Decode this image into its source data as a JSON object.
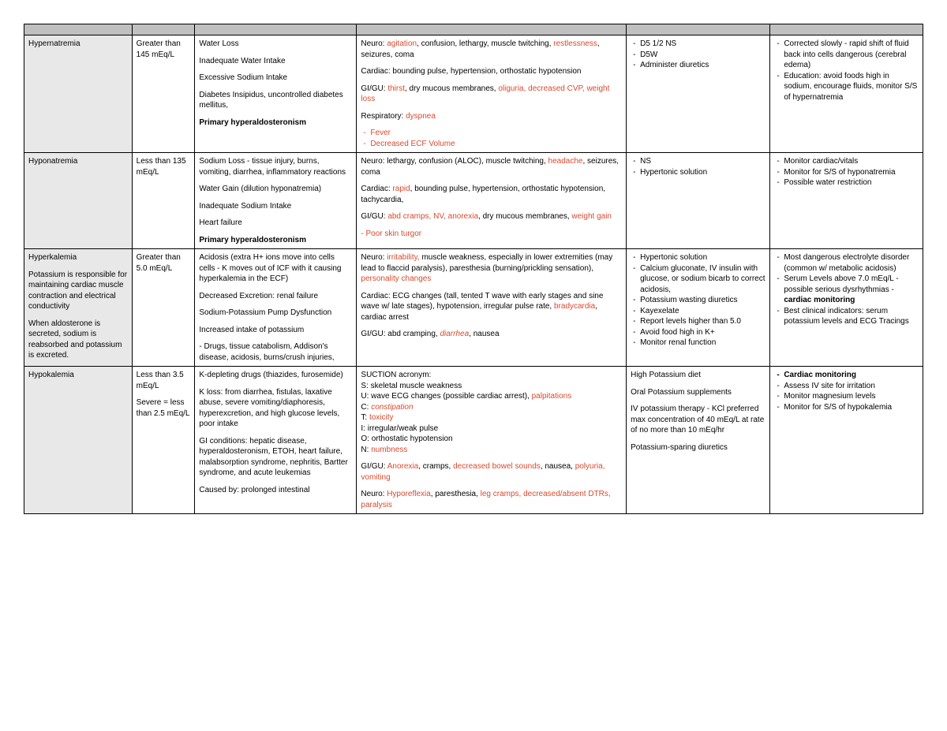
{
  "colors": {
    "header_bg": "#c0c0c0",
    "condition_bg": "#e8e8e8",
    "red_text": "#d94a2e",
    "border": "#000000",
    "page_bg": "#ffffff",
    "text": "#000000"
  },
  "typography": {
    "family": "Arial, Helvetica, sans-serif",
    "cell_fontsize_pt": 8,
    "line_height": 1.35
  },
  "layout": {
    "col_widths_pct": [
      12,
      7,
      18,
      30,
      16,
      17
    ]
  },
  "rows": [
    {
      "condition": "Hypernatremia",
      "value": "Greater than 145 mEq/L",
      "cause_p1": "Water Loss",
      "cause_p2": "Inadequate Water Intake",
      "cause_p3": "Excessive Sodium Intake",
      "cause_p4": "Diabetes Insipidus, uncontrolled diabetes mellitus,",
      "cause_p5": "Primary hyperaldosteronism",
      "ss_neuro_pre": "Neuro: ",
      "ss_neuro_red1": "agitation",
      "ss_neuro_mid1": ", confusion, lethargy, muscle twitching, ",
      "ss_neuro_red2": "restlessness",
      "ss_neuro_mid2": ", seizures, coma",
      "ss_cardiac": "Cardiac: bounding pulse, hypertension, orthostatic hypotension",
      "ss_gigu_pre": "GI/GU: ",
      "ss_gigu_red1": "thirst",
      "ss_gigu_mid1": ", dry mucous membranes, ",
      "ss_gigu_red2": "oliguria, decreased CVP, weight loss",
      "ss_resp_pre": "Respiratory: ",
      "ss_resp_red": "dyspnea",
      "ss_li1": "Fever",
      "ss_li2": "Decreased ECF Volume",
      "tx_li1": "D5 1/2 NS",
      "tx_li2": "D5W",
      "tx_li3": "Administer diuretics",
      "nurse_li1": "Corrected slowly - rapid shift of fluid back into cells dangerous (cerebral edema)",
      "nurse_li2": "Education: avoid foods high in sodium, encourage fluids, monitor S/S of hypernatremia"
    },
    {
      "condition": "Hyponatremia",
      "value": "Less than 135 mEq/L",
      "cause_p1": "Sodium Loss - tissue injury, burns, vomiting, diarrhea, inflammatory reactions",
      "cause_p2": "Water Gain (dilution hyponatremia)",
      "cause_p3": "Inadequate Sodium Intake",
      "cause_p4": "Heart failure",
      "cause_p5": "Primary hyperaldosteronism",
      "ss_neuro_pre": "Neuro: lethargy, confusion (ALOC), muscle twitching, ",
      "ss_neuro_red1": "headache",
      "ss_neuro_mid1": ", seizures, coma",
      "ss_cardiac_pre": "Cardiac: ",
      "ss_cardiac_red": "rapid",
      "ss_cardiac_mid": ", bounding pulse, hypertension, orthostatic hypotension, tachycardia,",
      "ss_gigu_pre": "GI/GU: ",
      "ss_gigu_red1": "abd cramps, NV, anorexia",
      "ss_gigu_mid1": ", dry mucous membranes, ",
      "ss_gigu_red2": "weight gain",
      "ss_extra_red": "- Poor skin turgor",
      "tx_li1": "NS",
      "tx_li2": "Hypertonic solution",
      "nurse_li1": "Monitor cardiac/vitals",
      "nurse_li2": "Monitor for S/S of hyponatremia",
      "nurse_li3": "Possible water restriction"
    },
    {
      "condition_title": "Hyperkalemia",
      "condition_p1": "Potassium is responsible for maintaining cardiac muscle contraction and electrical conductivity",
      "condition_p2": "When aldosterone is secreted, sodium is reabsorbed and potassium is excreted.",
      "value": "Greater than 5.0 mEq/L",
      "cause_p1": "Acidosis (extra H+ ions move into cells cells - K moves out of ICF with it causing hyperkalemia in the ECF)",
      "cause_p2": "Decreased Excretion: renal failure",
      "cause_p3": "Sodium-Potassium Pump Dysfunction",
      "cause_p4": "Increased intake of potassium",
      "cause_p5": "- Drugs, tissue catabolism, Addison's disease, acidosis, burns/crush injuries,",
      "ss_neuro_pre": "Neuro: ",
      "ss_neuro_red1": "irritability,",
      "ss_neuro_mid1": " muscle weakness, especially in lower extremities (may lead to flaccid paralysis), paresthesia (burning/prickling sensation), ",
      "ss_neuro_red2": "personality changes",
      "ss_cardiac_pre": "Cardiac: ECG changes (tall, tented T wave with early stages and sine wave w/ late stages), hypotension, irregular pulse rate, ",
      "ss_cardiac_red": "bradycardia",
      "ss_cardiac_mid": ", cardiac arrest",
      "ss_gigu_pre": "GI/GU: abd cramping, ",
      "ss_gigu_red": "diarrhea",
      "ss_gigu_mid": ", nausea",
      "tx_li1": "Hypertonic solution",
      "tx_li2": "Calcium gluconate, IV insulin with glucose, or sodium bicarb to correct acidosis,",
      "tx_li3": "Potassium wasting diuretics",
      "tx_li4": "Kayexelate",
      "tx_li5": "Report levels higher than 5.0",
      "tx_li6": "Avoid food high in K+",
      "tx_li7": "Monitor renal function",
      "nurse_li1": "Most dangerous electrolyte disorder (common w/ metabolic acidosis)",
      "nurse_li2_pre": "Serum Levels above 7.0 mEq/L - possible serious dysrhythmias - ",
      "nurse_li2_bold": "cardiac monitoring",
      "nurse_li3": "Best clinical indicators: serum potassium levels and ECG Tracings"
    },
    {
      "condition": "Hypokalemia",
      "value_p1": "Less than 3.5 mEq/L",
      "value_p2": "Severe = less than 2.5 mEq/L",
      "cause_p1": "K-depleting drugs (thiazides, furosemide)",
      "cause_p2": "K loss: from diarrhea, fistulas, laxative abuse, severe vomiting/diaphoresis, hyperexcretion, and high glucose levels, poor intake",
      "cause_p3": "GI conditions: hepatic disease, hyperaldosteronism, ETOH, heart failure, malabsorption syndrome, nephritis, Bartter syndrome, and acute leukemias",
      "cause_p4": "Caused by: prolonged intestinal",
      "ss_p1": "SUCTION acronym:",
      "ss_s": "S: skeletal muscle weakness",
      "ss_u_pre": "U: wave ECG changes (possible cardiac arrest), ",
      "ss_u_red": "palpitations",
      "ss_c_pre": "C: ",
      "ss_c_red": "constipation",
      "ss_t_pre": "T: ",
      "ss_t_red": "toxicity",
      "ss_i": "I: irregular/weak pulse",
      "ss_o": "O: orthostatic hypotension",
      "ss_n_pre": "N: ",
      "ss_n_red": "numbness",
      "ss_gigu_pre": "GI/GU: ",
      "ss_gigu_red1": "Anorexia",
      "ss_gigu_mid1": ", cramps, ",
      "ss_gigu_red2": "decreased bowel sounds",
      "ss_gigu_mid2": ", nausea, ",
      "ss_gigu_red3": "polyuria, vomiting",
      "ss_neuro_pre": "Neuro: ",
      "ss_neuro_red1": "Hyporeflexia",
      "ss_neuro_mid1": ", paresthesia, ",
      "ss_neuro_red2": "leg cramps, decreased/absent DTRs, paralysis",
      "tx_p1": "High Potassium diet",
      "tx_p2": "Oral Potassium supplements",
      "tx_p3": "IV potassium therapy - KCl preferred max concentration of 40 mEq/L at rate of no more than 10 mEq/hr",
      "tx_p4": "Potassium-sparing diuretics",
      "nurse_li1": "Cardiac monitoring",
      "nurse_li2": "Assess IV site for irritation",
      "nurse_li3": "Monitor magnesium levels",
      "nurse_li4": "Monitor for S/S of hypokalemia"
    }
  ]
}
